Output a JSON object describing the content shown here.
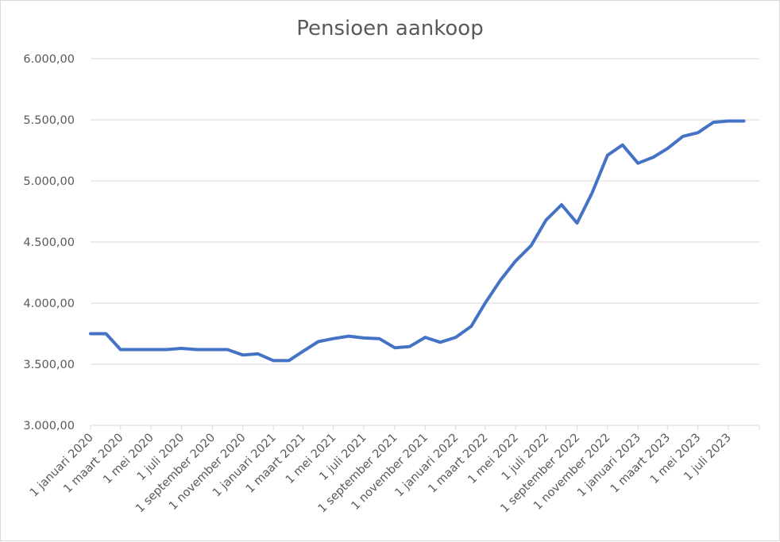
{
  "chart_data": {
    "type": "line",
    "title": "Pensioen aankoop",
    "xlabel": "",
    "ylabel": "",
    "ylim": [
      3000,
      6000
    ],
    "ytick_step": 500,
    "ytick_labels": [
      "3.000,00",
      "3.500,00",
      "4.000,00",
      "4.500,00",
      "5.000,00",
      "5.500,00",
      "6.000,00"
    ],
    "x_tick_labels": [
      "1 januari 2020",
      "1 maart 2020",
      "1 mei 2020",
      "1 juli 2020",
      "1 september 2020",
      "1 november 2020",
      "1 januari 2021",
      "1 maart 2021",
      "1 mei 2021",
      "1 juli 2021",
      "1 september 2021",
      "1 november 2021",
      "1 januari 2022",
      "1 maart 2022",
      "1 mei 2022",
      "1 juli 2022",
      "1 september 2022",
      "1 november 2022",
      "1 januari 2023",
      "1 maart 2023",
      "1 mei 2023",
      "1 juli 2023"
    ],
    "grid": true,
    "legend": "none",
    "line_color": "#4472c4",
    "series": [
      {
        "x": [
          "2020-01-01",
          "2020-02-01",
          "2020-03-01",
          "2020-04-01",
          "2020-05-01",
          "2020-06-01",
          "2020-07-01",
          "2020-08-01",
          "2020-09-01",
          "2020-10-01",
          "2020-11-01",
          "2020-12-01",
          "2021-01-01",
          "2021-02-01",
          "2021-03-01",
          "2021-04-01",
          "2021-05-01",
          "2021-06-01",
          "2021-07-01",
          "2021-08-01",
          "2021-09-01",
          "2021-10-01",
          "2021-11-01",
          "2021-12-01",
          "2022-01-01",
          "2022-02-01",
          "2022-03-01",
          "2022-04-01",
          "2022-05-01",
          "2022-06-01",
          "2022-07-01",
          "2022-08-01",
          "2022-09-01",
          "2022-10-01",
          "2022-11-01",
          "2022-12-01",
          "2023-01-01",
          "2023-02-01",
          "2023-03-01",
          "2023-04-01",
          "2023-05-01",
          "2023-06-01",
          "2023-07-01",
          "2023-08-01"
        ],
        "values": [
          3750,
          3750,
          3620,
          3620,
          3620,
          3620,
          3630,
          3620,
          3620,
          3620,
          3575,
          3585,
          3530,
          3530,
          3605,
          3685,
          3710,
          3730,
          3715,
          3710,
          3635,
          3645,
          3720,
          3680,
          3720,
          3810,
          4000,
          4190,
          4345,
          4470,
          4680,
          4805,
          4655,
          4900,
          5210,
          5295,
          5145,
          5195,
          5265,
          5365,
          5395,
          5480,
          5490,
          5490
        ]
      }
    ]
  }
}
